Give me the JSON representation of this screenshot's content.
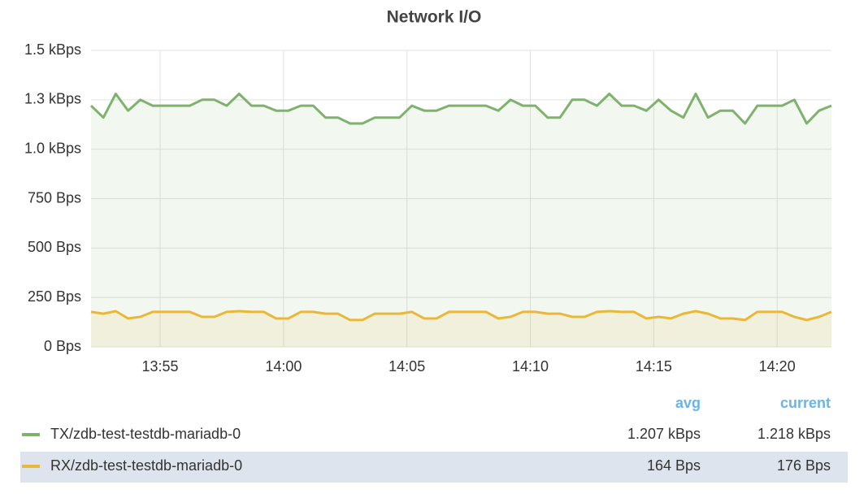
{
  "chart_data": {
    "type": "line",
    "title": "Network I/O",
    "x": [
      832.2,
      832.7,
      833.2,
      833.7,
      834.2,
      834.7,
      835.2,
      835.7,
      836.2,
      836.7,
      837.2,
      837.7,
      838.2,
      838.7,
      839.2,
      839.7,
      840.2,
      840.7,
      841.2,
      841.7,
      842.2,
      842.7,
      843.2,
      843.7,
      844.2,
      844.7,
      845.2,
      845.7,
      846.2,
      846.7,
      847.2,
      847.7,
      848.2,
      848.7,
      849.2,
      849.7,
      850.2,
      850.7,
      851.2,
      851.7,
      852.2,
      852.7,
      853.2,
      853.7,
      854.2,
      854.7,
      855.2,
      855.7,
      856.2,
      856.7,
      857.2,
      857.7,
      858.2,
      858.7,
      859.2,
      859.7,
      860.2,
      860.7,
      861.2,
      861.7,
      862.2
    ],
    "xlim": [
      832.2,
      862.2
    ],
    "xticks": [
      {
        "value": 835,
        "label": "13:55"
      },
      {
        "value": 840,
        "label": "14:00"
      },
      {
        "value": 845,
        "label": "14:05"
      },
      {
        "value": 850,
        "label": "14:10"
      },
      {
        "value": 855,
        "label": "14:15"
      },
      {
        "value": 860,
        "label": "14:20"
      }
    ],
    "ylim": [
      0,
      1500
    ],
    "yticks": [
      {
        "value": 0,
        "label": "0 Bps"
      },
      {
        "value": 250,
        "label": "250 Bps"
      },
      {
        "value": 500,
        "label": "500 Bps"
      },
      {
        "value": 750,
        "label": "750 Bps"
      },
      {
        "value": 1000,
        "label": "1.0 kBps"
      },
      {
        "value": 1250,
        "label": "1.3 kBps"
      },
      {
        "value": 1500,
        "label": "1.5 kBps"
      }
    ],
    "grid": true,
    "legend_columns": [
      "avg",
      "current"
    ],
    "series": [
      {
        "name": "TX/zdb-test-testdb-mariadb-0",
        "color": "#7eb26d",
        "avg": "1.207 kBps",
        "current": "1.218 kBps",
        "values": [
          1220,
          1160,
          1280,
          1195,
          1250,
          1220,
          1220,
          1220,
          1220,
          1250,
          1250,
          1220,
          1280,
          1220,
          1220,
          1195,
          1195,
          1220,
          1220,
          1160,
          1160,
          1130,
          1130,
          1160,
          1160,
          1160,
          1220,
          1195,
          1195,
          1220,
          1220,
          1220,
          1220,
          1195,
          1250,
          1220,
          1220,
          1160,
          1160,
          1250,
          1250,
          1220,
          1280,
          1220,
          1220,
          1195,
          1250,
          1195,
          1160,
          1280,
          1160,
          1195,
          1195,
          1130,
          1220,
          1220,
          1220,
          1250,
          1130,
          1195,
          1220
        ]
      },
      {
        "name": "RX/zdb-test-testdb-mariadb-0",
        "color": "#eab839",
        "avg": "164 Bps",
        "current": "176 Bps",
        "values": [
          177,
          168,
          181,
          144,
          152,
          177,
          177,
          177,
          177,
          152,
          152,
          177,
          181,
          177,
          177,
          144,
          144,
          177,
          177,
          168,
          168,
          136,
          136,
          168,
          168,
          168,
          177,
          144,
          144,
          177,
          177,
          177,
          177,
          144,
          152,
          177,
          177,
          168,
          168,
          152,
          152,
          177,
          181,
          177,
          177,
          144,
          152,
          144,
          168,
          181,
          168,
          144,
          144,
          136,
          177,
          177,
          177,
          152,
          136,
          152,
          177
        ]
      }
    ]
  }
}
